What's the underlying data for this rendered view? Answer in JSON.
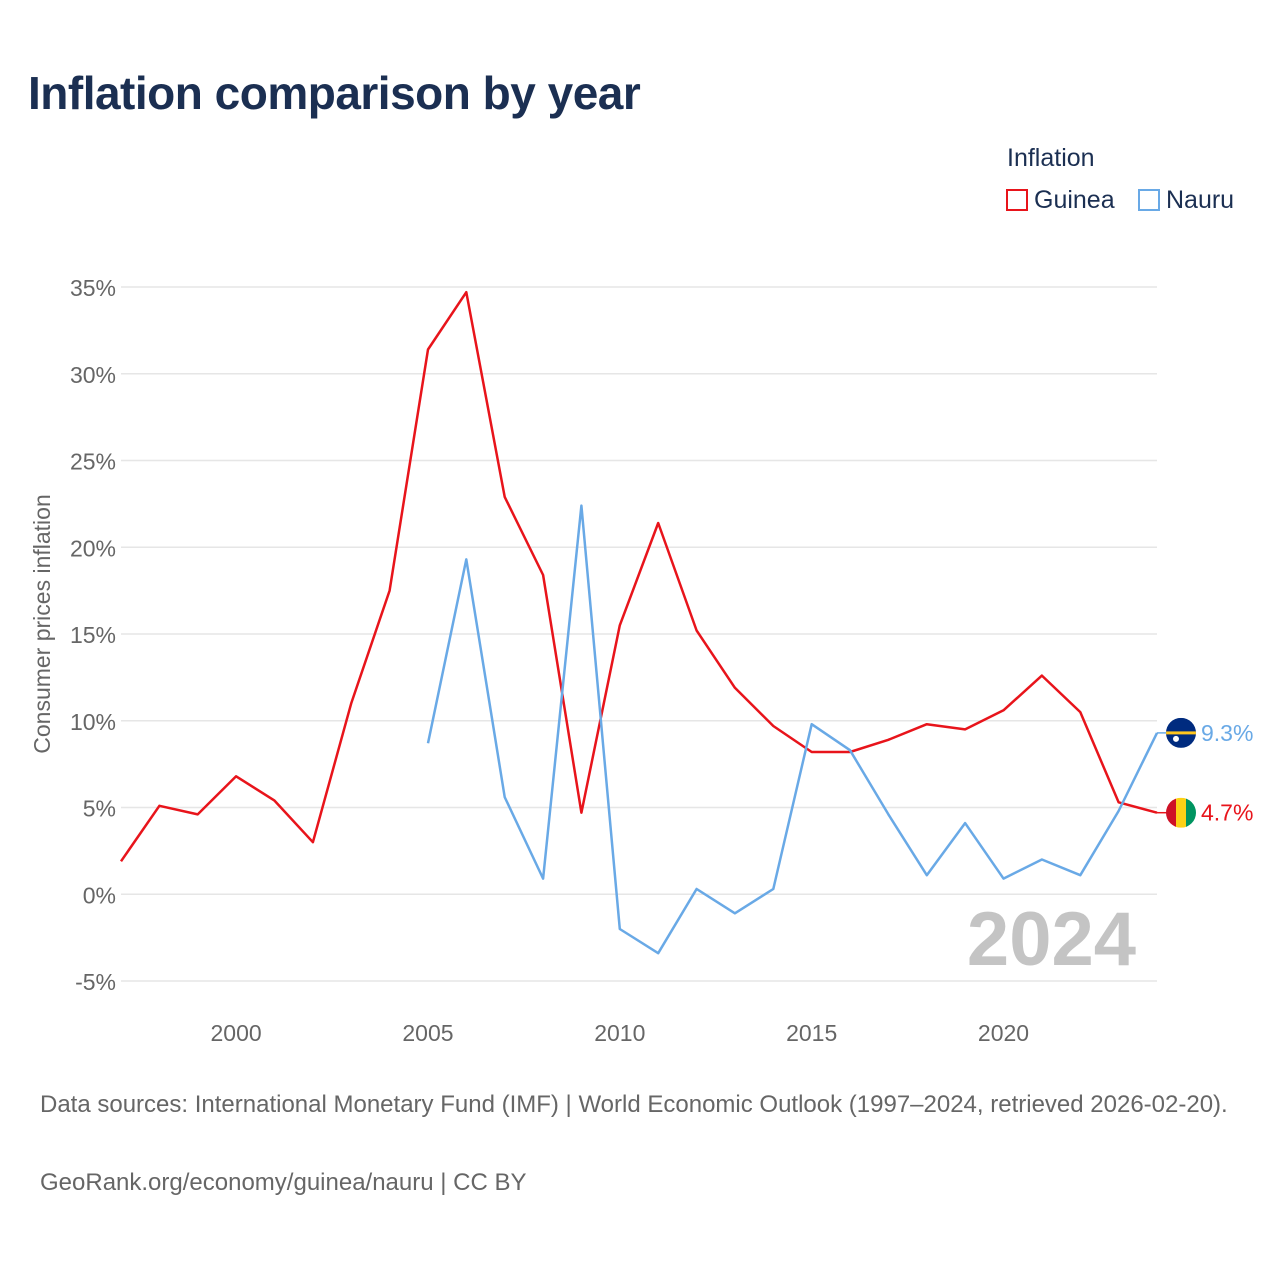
{
  "title": "Inflation comparison by year",
  "legend": {
    "title": "Inflation",
    "items": [
      {
        "label": "Guinea",
        "color": "#e8141b"
      },
      {
        "label": "Nauru",
        "color": "#69a9e6"
      }
    ]
  },
  "year_watermark": "2024",
  "footer": {
    "source": "Data sources: International Monetary Fund (IMF) | World Economic Outlook (1997–2024, retrieved 2026-02-20).",
    "credit": "GeoRank.org/economy/guinea/nauru | CC BY"
  },
  "chart_data": {
    "type": "line",
    "title": "Inflation comparison by year",
    "xlabel": "",
    "ylabel": "Consumer prices inflation",
    "xlim": [
      1997,
      2024
    ],
    "ylim": [
      -5,
      35
    ],
    "x_ticks": [
      2000,
      2005,
      2010,
      2015,
      2020
    ],
    "y_ticks": [
      -5,
      0,
      5,
      10,
      15,
      20,
      25,
      30,
      35
    ],
    "y_tick_labels": [
      "-5%",
      "0%",
      "5%",
      "10%",
      "15%",
      "20%",
      "25%",
      "30%",
      "35%"
    ],
    "grid": true,
    "legend_position": "top-right",
    "series": [
      {
        "name": "Guinea",
        "color": "#e8141b",
        "x": [
          1997,
          1998,
          1999,
          2000,
          2001,
          2002,
          2003,
          2004,
          2005,
          2006,
          2007,
          2008,
          2009,
          2010,
          2011,
          2012,
          2013,
          2014,
          2015,
          2016,
          2017,
          2018,
          2019,
          2020,
          2021,
          2022,
          2023,
          2024
        ],
        "values": [
          1.9,
          5.1,
          4.6,
          6.8,
          5.4,
          3.0,
          11.0,
          17.5,
          31.4,
          34.7,
          22.9,
          18.4,
          4.7,
          15.5,
          21.4,
          15.2,
          11.9,
          9.7,
          8.2,
          8.2,
          8.9,
          9.8,
          9.5,
          10.6,
          12.6,
          10.5,
          5.3,
          4.7
        ],
        "end_label": "4.7%"
      },
      {
        "name": "Nauru",
        "color": "#69a9e6",
        "x": [
          2005,
          2006,
          2007,
          2008,
          2009,
          2010,
          2011,
          2012,
          2013,
          2014,
          2015,
          2016,
          2017,
          2018,
          2019,
          2020,
          2021,
          2022,
          2023,
          2024
        ],
        "values": [
          8.7,
          19.3,
          5.6,
          0.9,
          22.4,
          -2.0,
          -3.4,
          0.3,
          -1.1,
          0.3,
          9.8,
          8.3,
          4.6,
          1.1,
          4.1,
          0.9,
          2.0,
          1.1,
          4.8,
          9.3
        ],
        "end_label": "9.3%"
      }
    ]
  }
}
